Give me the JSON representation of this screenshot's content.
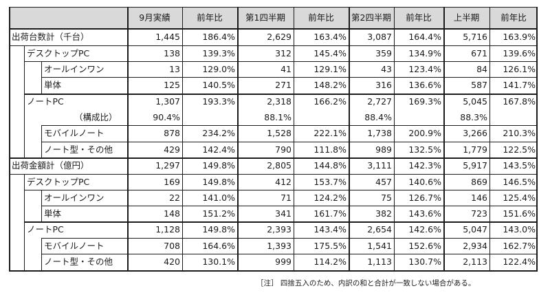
{
  "table": {
    "header": {
      "corner": "",
      "columns": [
        "9月実績",
        "前年比",
        "第1四半期",
        "前年比",
        "第2四半期",
        "前年比",
        "上半期",
        "前年比"
      ]
    },
    "rows": [
      {
        "label": "出荷台数計（千台）",
        "level": 0,
        "values": [
          "1,445",
          "186.4%",
          "2,629",
          "163.4%",
          "3,087",
          "164.4%",
          "5,716",
          "163.9%"
        ]
      },
      {
        "label": "デスクトップPC",
        "level": 1,
        "values": [
          "138",
          "139.3%",
          "312",
          "145.4%",
          "359",
          "134.9%",
          "671",
          "139.6%"
        ]
      },
      {
        "label": "オールインワン",
        "level": 2,
        "values": [
          "13",
          "129.0%",
          "41",
          "129.1%",
          "43",
          "123.4%",
          "84",
          "126.1%"
        ]
      },
      {
        "label": "単体",
        "level": 2,
        "values": [
          "125",
          "140.5%",
          "271",
          "148.2%",
          "316",
          "136.6%",
          "587",
          "141.7%"
        ]
      },
      {
        "label": "ノートPC",
        "level": 1,
        "values": [
          "1,307",
          "193.3%",
          "2,318",
          "166.2%",
          "2,727",
          "169.3%",
          "5,045",
          "167.8%"
        ]
      },
      {
        "label": "（構成比）",
        "level": 1,
        "sub": true,
        "values": [
          "90.4%",
          "",
          "88.1%",
          "",
          "88.4%",
          "",
          "88.3%",
          ""
        ]
      },
      {
        "label": "モバイルノート",
        "level": 2,
        "values": [
          "878",
          "234.2%",
          "1,528",
          "222.1%",
          "1,738",
          "200.9%",
          "3,266",
          "210.3%"
        ]
      },
      {
        "label": "ノート型・その他",
        "level": 2,
        "values": [
          "429",
          "142.4%",
          "790",
          "111.8%",
          "989",
          "132.5%",
          "1,779",
          "122.5%"
        ]
      },
      {
        "label": "出荷金額計（億円）",
        "level": 0,
        "values": [
          "1,297",
          "149.8%",
          "2,805",
          "144.8%",
          "3,111",
          "142.3%",
          "5,917",
          "143.5%"
        ]
      },
      {
        "label": "デスクトップPC",
        "level": 1,
        "values": [
          "169",
          "149.8%",
          "412",
          "153.7%",
          "457",
          "140.6%",
          "869",
          "146.5%"
        ]
      },
      {
        "label": "オールインワン",
        "level": 2,
        "values": [
          "22",
          "141.0%",
          "71",
          "124.2%",
          "75",
          "126.7%",
          "146",
          "125.4%"
        ]
      },
      {
        "label": "単体",
        "level": 2,
        "values": [
          "148",
          "151.2%",
          "341",
          "161.7%",
          "382",
          "143.6%",
          "723",
          "151.6%"
        ]
      },
      {
        "label": "ノートPC",
        "level": 1,
        "values": [
          "1,128",
          "149.8%",
          "2,393",
          "143.4%",
          "2,654",
          "142.6%",
          "5,047",
          "143.0%"
        ]
      },
      {
        "label": "モバイルノート",
        "level": 2,
        "values": [
          "708",
          "164.6%",
          "1,393",
          "175.5%",
          "1,541",
          "152.6%",
          "2,934",
          "162.7%"
        ]
      },
      {
        "label": "ノート型・その他",
        "level": 2,
        "values": [
          "420",
          "130.1%",
          "999",
          "114.2%",
          "1,113",
          "130.7%",
          "2,113",
          "122.4%"
        ]
      }
    ]
  },
  "note": "［注］ 四捨五入のため、内訳の和と合計が一致しない場合がある。",
  "colors": {
    "header_bg": "#d9d9d9",
    "border": "#1a1a1a",
    "text": "#1a1a1a"
  }
}
